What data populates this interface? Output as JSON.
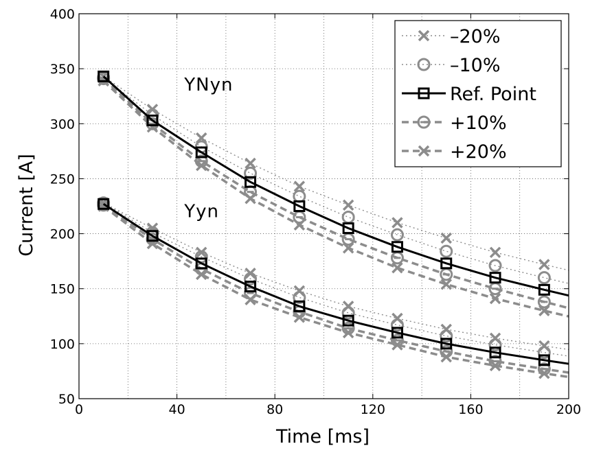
{
  "chart_data": {
    "type": "line",
    "xlabel": "Time [ms]",
    "ylabel": "Current [A]",
    "xlim": [
      0,
      200
    ],
    "ylim": [
      50,
      400
    ],
    "xticks": [
      0,
      40,
      80,
      120,
      160,
      200
    ],
    "yticks": [
      50,
      100,
      150,
      200,
      250,
      300,
      350,
      400
    ],
    "grid": true,
    "legend_position": "top-right",
    "annotations": [
      {
        "text": "YNyn",
        "x": 43,
        "y": 330
      },
      {
        "text": "Yyn",
        "x": 43,
        "y": 215
      }
    ],
    "series_styles": [
      {
        "label": "–20%",
        "color": "#8c8c8c",
        "dash": "2 4",
        "width": 1.4,
        "marker": "x"
      },
      {
        "label": "–10%",
        "color": "#8c8c8c",
        "dash": "2 4",
        "width": 1.4,
        "marker": "circle"
      },
      {
        "label": "Ref. Point",
        "color": "#000000",
        "dash": "",
        "width": 3,
        "marker": "square"
      },
      {
        "label": "+10%",
        "color": "#8c8c8c",
        "dash": "10 6",
        "width": 3.5,
        "marker": "circle-dash"
      },
      {
        "label": "+20%",
        "color": "#8c8c8c",
        "dash": "10 6",
        "width": 3.5,
        "marker": "x"
      }
    ],
    "x": [
      10,
      30,
      50,
      70,
      90,
      110,
      130,
      150,
      170,
      190
    ],
    "series": [
      {
        "group": "YNyn",
        "style": 0,
        "values": [
          343,
          313,
          287,
          264,
          243,
          226,
          210,
          196,
          183,
          172
        ]
      },
      {
        "group": "YNyn",
        "style": 1,
        "values": [
          342,
          308,
          279,
          255,
          234,
          215,
          199,
          184,
          171,
          160
        ]
      },
      {
        "group": "YNyn",
        "style": 2,
        "values": [
          343,
          303,
          274,
          247,
          225,
          205,
          188,
          173,
          160,
          149
        ]
      },
      {
        "group": "YNyn",
        "style": 3,
        "values": [
          341,
          300,
          266,
          238,
          215,
          195,
          178,
          163,
          150,
          138
        ]
      },
      {
        "group": "YNyn",
        "style": 4,
        "values": [
          339,
          297,
          262,
          232,
          208,
          187,
          169,
          154,
          141,
          130
        ]
      },
      {
        "group": "Yyn",
        "style": 0,
        "values": [
          228,
          205,
          183,
          164,
          148,
          134,
          123,
          113,
          105,
          98
        ]
      },
      {
        "group": "Yyn",
        "style": 1,
        "values": [
          228,
          201,
          179,
          159,
          142,
          128,
          117,
          107,
          99,
          92
        ]
      },
      {
        "group": "Yyn",
        "style": 2,
        "values": [
          227,
          198,
          173,
          152,
          134,
          121,
          110,
          100,
          92,
          85
        ]
      },
      {
        "group": "Yyn",
        "style": 3,
        "values": [
          226,
          195,
          168,
          146,
          129,
          114,
          103,
          93,
          84,
          77
        ]
      },
      {
        "group": "Yyn",
        "style": 4,
        "values": [
          225,
          191,
          163,
          140,
          124,
          110,
          99,
          88,
          80,
          73
        ]
      }
    ]
  }
}
